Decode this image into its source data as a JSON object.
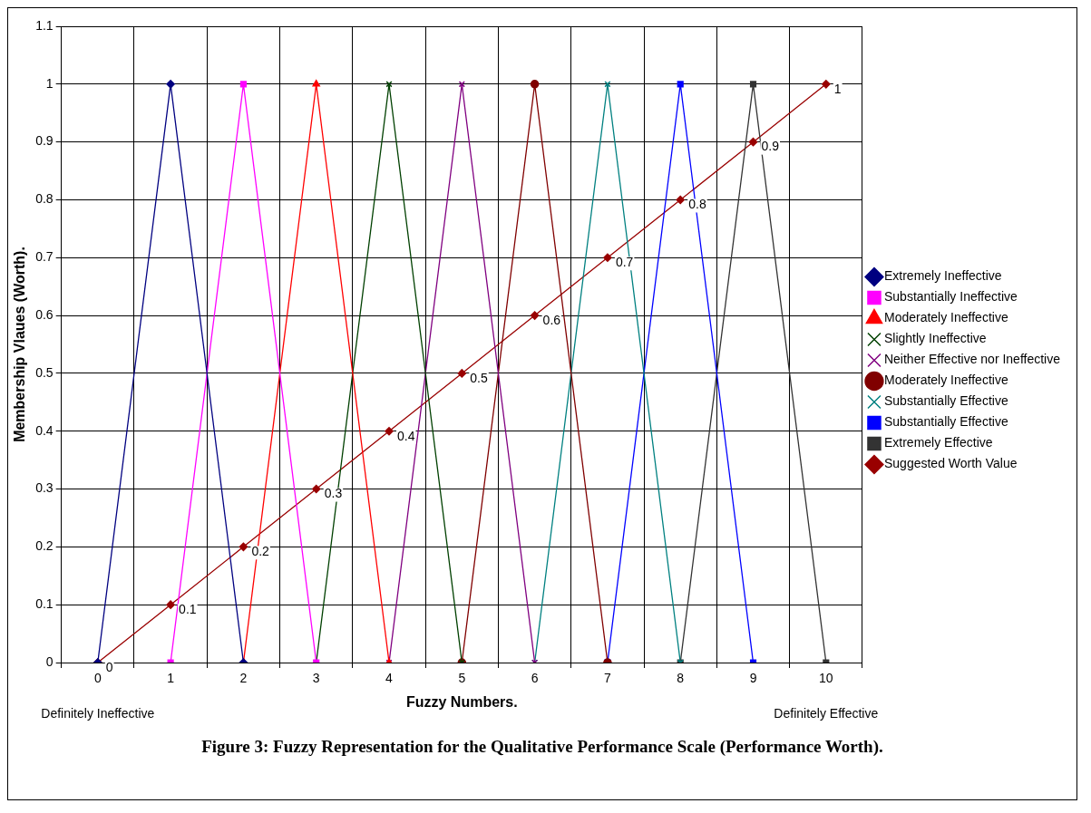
{
  "chart_data": {
    "type": "line",
    "title": "Figure 3: Fuzzy Representation for the Qualitative Performance Scale (Performance Worth).",
    "xlabel": "Fuzzy Numbers.",
    "ylabel": "Membership Vlaues (Worth).",
    "categories": [
      "0",
      "1",
      "2",
      "3",
      "4",
      "5",
      "6",
      "7",
      "8",
      "9",
      "10"
    ],
    "annotations": [
      "Definitely Ineffective",
      "Definitely Effective"
    ],
    "ylim": [
      0,
      1.1
    ],
    "yticks": [
      0,
      0.1,
      0.2,
      0.3,
      0.4,
      0.5,
      0.6,
      0.7,
      0.8,
      0.9,
      1,
      1.1
    ],
    "grid": true,
    "legend": "right",
    "series": [
      {
        "name": "Extremely Ineffective",
        "color": "#000080",
        "marker": "diamond",
        "values": [
          0,
          1,
          0,
          null,
          null,
          null,
          null,
          null,
          null,
          null,
          null
        ]
      },
      {
        "name": "Substantially Ineffective",
        "color": "#ff00ff",
        "marker": "square",
        "values": [
          null,
          0,
          1,
          0,
          null,
          null,
          null,
          null,
          null,
          null,
          null
        ]
      },
      {
        "name": "Moderately Ineffective",
        "color": "#ff0000",
        "marker": "triangle",
        "values": [
          null,
          null,
          0,
          1,
          0,
          null,
          null,
          null,
          null,
          null,
          null
        ]
      },
      {
        "name": "Slightly Ineffective",
        "color": "#004000",
        "marker": "cross",
        "values": [
          null,
          null,
          null,
          0,
          1,
          0,
          null,
          null,
          null,
          null,
          null
        ]
      },
      {
        "name": "Neither Effective nor Ineffective",
        "color": "#800080",
        "marker": "cross",
        "values": [
          null,
          null,
          null,
          null,
          0,
          1,
          0,
          null,
          null,
          null,
          null
        ]
      },
      {
        "name": "Moderately Ineffective",
        "color": "#800000",
        "marker": "circle",
        "values": [
          null,
          null,
          null,
          null,
          null,
          0,
          1,
          0,
          null,
          null,
          null
        ]
      },
      {
        "name": "Substantially Effective",
        "color": "#008080",
        "marker": "cross",
        "values": [
          null,
          null,
          null,
          null,
          null,
          null,
          0,
          1,
          0,
          null,
          null
        ]
      },
      {
        "name": "Substantially Effective",
        "color": "#0000ff",
        "marker": "square",
        "values": [
          null,
          null,
          null,
          null,
          null,
          null,
          null,
          0,
          1,
          0,
          null
        ]
      },
      {
        "name": "Extremely Effective",
        "color": "#333333",
        "marker": "square",
        "values": [
          null,
          null,
          null,
          null,
          null,
          null,
          null,
          null,
          0,
          1,
          0
        ]
      },
      {
        "name": "Suggested Worth Value",
        "color": "#990000",
        "marker": "diamond",
        "values": [
          0,
          0.1,
          0.2,
          0.3,
          0.4,
          0.5,
          0.6,
          0.7,
          0.8,
          0.9,
          1
        ],
        "value_labels": [
          "0",
          "0.1",
          "0.2",
          "0.3",
          "0.4",
          "0.5",
          "0.6",
          "0.7",
          "0.8",
          "0.9",
          "1"
        ]
      }
    ]
  }
}
